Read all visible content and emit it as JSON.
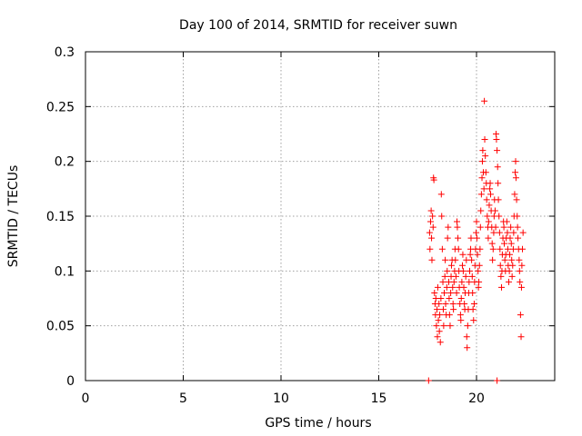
{
  "chart_data": {
    "type": "scatter",
    "title": "Day 100 of 2014, SRMTID for receiver suwn",
    "xlabel": "GPS time / hours",
    "ylabel": "SRMTID / TECUs",
    "xlim": [
      0,
      24
    ],
    "ylim": [
      0,
      0.3
    ],
    "grid": true,
    "marker_color": "#ff0000",
    "marker": "plus",
    "x_ticks": [
      {
        "value": 0,
        "label": "0"
      },
      {
        "value": 5,
        "label": "5"
      },
      {
        "value": 10,
        "label": "10"
      },
      {
        "value": 15,
        "label": "15"
      },
      {
        "value": 20,
        "label": "20"
      }
    ],
    "y_ticks": [
      {
        "value": 0,
        "label": "0"
      },
      {
        "value": 0.05,
        "label": "0.05"
      },
      {
        "value": 0.1,
        "label": "0.1"
      },
      {
        "value": 0.15,
        "label": "0.15"
      },
      {
        "value": 0.2,
        "label": "0.2"
      },
      {
        "value": 0.25,
        "label": "0.25"
      },
      {
        "value": 0.3,
        "label": "0.3"
      }
    ],
    "series": [
      {
        "name": "SRMTID",
        "points": [
          [
            17.55,
            0.0
          ],
          [
            21.05,
            0.0
          ],
          [
            17.6,
            0.135
          ],
          [
            17.62,
            0.12
          ],
          [
            17.65,
            0.145
          ],
          [
            17.68,
            0.155
          ],
          [
            17.7,
            0.13
          ],
          [
            17.72,
            0.11
          ],
          [
            17.75,
            0.15
          ],
          [
            17.78,
            0.14
          ],
          [
            17.8,
            0.185
          ],
          [
            17.82,
            0.183
          ],
          [
            17.85,
            0.08
          ],
          [
            17.88,
            0.07
          ],
          [
            17.9,
            0.06
          ],
          [
            17.92,
            0.075
          ],
          [
            17.95,
            0.05
          ],
          [
            17.98,
            0.065
          ],
          [
            18.0,
            0.04
          ],
          [
            18.02,
            0.085
          ],
          [
            18.05,
            0.055
          ],
          [
            18.08,
            0.07
          ],
          [
            18.1,
            0.045
          ],
          [
            18.12,
            0.06
          ],
          [
            18.15,
            0.035
          ],
          [
            18.18,
            0.075
          ],
          [
            18.2,
            0.17
          ],
          [
            18.22,
            0.15
          ],
          [
            18.25,
            0.12
          ],
          [
            18.28,
            0.09
          ],
          [
            18.3,
            0.065
          ],
          [
            18.32,
            0.05
          ],
          [
            18.35,
            0.08
          ],
          [
            18.38,
            0.095
          ],
          [
            18.4,
            0.11
          ],
          [
            18.42,
            0.07
          ],
          [
            18.45,
            0.06
          ],
          [
            18.48,
            0.085
          ],
          [
            18.5,
            0.1
          ],
          [
            18.52,
            0.13
          ],
          [
            18.55,
            0.14
          ],
          [
            18.58,
            0.09
          ],
          [
            18.6,
            0.075
          ],
          [
            18.62,
            0.06
          ],
          [
            18.65,
            0.05
          ],
          [
            18.68,
            0.08
          ],
          [
            18.7,
            0.095
          ],
          [
            18.72,
            0.105
          ],
          [
            18.75,
            0.11
          ],
          [
            18.78,
            0.085
          ],
          [
            18.8,
            0.07
          ],
          [
            18.82,
            0.065
          ],
          [
            18.85,
            0.09
          ],
          [
            18.88,
            0.1
          ],
          [
            18.9,
            0.12
          ],
          [
            18.92,
            0.11
          ],
          [
            18.95,
            0.095
          ],
          [
            18.98,
            0.08
          ],
          [
            19.0,
            0.145
          ],
          [
            19.02,
            0.14
          ],
          [
            19.05,
            0.13
          ],
          [
            19.08,
            0.12
          ],
          [
            19.1,
            0.1
          ],
          [
            19.12,
            0.085
          ],
          [
            19.15,
            0.07
          ],
          [
            19.18,
            0.06
          ],
          [
            19.2,
            0.055
          ],
          [
            19.22,
            0.075
          ],
          [
            19.25,
            0.09
          ],
          [
            19.28,
            0.105
          ],
          [
            19.3,
            0.115
          ],
          [
            19.32,
            0.1
          ],
          [
            19.35,
            0.085
          ],
          [
            19.38,
            0.07
          ],
          [
            19.4,
            0.065
          ],
          [
            19.42,
            0.08
          ],
          [
            19.45,
            0.095
          ],
          [
            19.48,
            0.11
          ],
          [
            19.5,
            0.04
          ],
          [
            19.52,
            0.03
          ],
          [
            19.55,
            0.05
          ],
          [
            19.58,
            0.065
          ],
          [
            19.6,
            0.08
          ],
          [
            19.62,
            0.09
          ],
          [
            19.65,
            0.1
          ],
          [
            19.68,
            0.115
          ],
          [
            19.7,
            0.12
          ],
          [
            19.72,
            0.13
          ],
          [
            19.75,
            0.11
          ],
          [
            19.78,
            0.095
          ],
          [
            19.8,
            0.08
          ],
          [
            19.82,
            0.065
          ],
          [
            19.85,
            0.055
          ],
          [
            19.88,
            0.07
          ],
          [
            19.9,
            0.09
          ],
          [
            19.92,
            0.105
          ],
          [
            19.95,
            0.12
          ],
          [
            19.98,
            0.135
          ],
          [
            20.0,
            0.145
          ],
          [
            20.02,
            0.13
          ],
          [
            20.05,
            0.115
          ],
          [
            20.08,
            0.1
          ],
          [
            20.1,
            0.085
          ],
          [
            20.12,
            0.09
          ],
          [
            20.15,
            0.105
          ],
          [
            20.18,
            0.12
          ],
          [
            20.2,
            0.14
          ],
          [
            20.22,
            0.155
          ],
          [
            20.25,
            0.17
          ],
          [
            20.28,
            0.185
          ],
          [
            20.3,
            0.2
          ],
          [
            20.32,
            0.21
          ],
          [
            20.35,
            0.19
          ],
          [
            20.38,
            0.175
          ],
          [
            20.4,
            0.255
          ],
          [
            20.42,
            0.22
          ],
          [
            20.45,
            0.205
          ],
          [
            20.48,
            0.19
          ],
          [
            20.5,
            0.18
          ],
          [
            20.52,
            0.165
          ],
          [
            20.55,
            0.15
          ],
          [
            20.58,
            0.14
          ],
          [
            20.6,
            0.13
          ],
          [
            20.62,
            0.145
          ],
          [
            20.65,
            0.16
          ],
          [
            20.68,
            0.175
          ],
          [
            20.7,
            0.18
          ],
          [
            20.72,
            0.17
          ],
          [
            20.75,
            0.155
          ],
          [
            20.78,
            0.14
          ],
          [
            20.8,
            0.125
          ],
          [
            20.82,
            0.11
          ],
          [
            20.85,
            0.12
          ],
          [
            20.88,
            0.135
          ],
          [
            20.9,
            0.15
          ],
          [
            20.92,
            0.165
          ],
          [
            20.95,
            0.155
          ],
          [
            20.98,
            0.14
          ],
          [
            21.0,
            0.225
          ],
          [
            21.02,
            0.22
          ],
          [
            21.05,
            0.21
          ],
          [
            21.08,
            0.195
          ],
          [
            21.1,
            0.18
          ],
          [
            21.12,
            0.165
          ],
          [
            21.15,
            0.15
          ],
          [
            21.18,
            0.135
          ],
          [
            21.2,
            0.12
          ],
          [
            21.22,
            0.105
          ],
          [
            21.25,
            0.095
          ],
          [
            21.28,
            0.085
          ],
          [
            21.3,
            0.1
          ],
          [
            21.32,
            0.115
          ],
          [
            21.35,
            0.13
          ],
          [
            21.38,
            0.145
          ],
          [
            21.4,
            0.14
          ],
          [
            21.42,
            0.125
          ],
          [
            21.45,
            0.11
          ],
          [
            21.48,
            0.1
          ],
          [
            21.5,
            0.115
          ],
          [
            21.52,
            0.13
          ],
          [
            21.55,
            0.145
          ],
          [
            21.58,
            0.135
          ],
          [
            21.6,
            0.12
          ],
          [
            21.62,
            0.105
          ],
          [
            21.65,
            0.09
          ],
          [
            21.68,
            0.1
          ],
          [
            21.7,
            0.115
          ],
          [
            21.72,
            0.13
          ],
          [
            21.75,
            0.14
          ],
          [
            21.78,
            0.125
          ],
          [
            21.8,
            0.11
          ],
          [
            21.82,
            0.095
          ],
          [
            21.85,
            0.105
          ],
          [
            21.88,
            0.12
          ],
          [
            21.9,
            0.135
          ],
          [
            21.92,
            0.15
          ],
          [
            21.95,
            0.17
          ],
          [
            21.98,
            0.19
          ],
          [
            22.0,
            0.2
          ],
          [
            22.02,
            0.185
          ],
          [
            22.05,
            0.165
          ],
          [
            22.08,
            0.15
          ],
          [
            22.1,
            0.14
          ],
          [
            22.12,
            0.13
          ],
          [
            22.15,
            0.12
          ],
          [
            22.18,
            0.11
          ],
          [
            22.2,
            0.1
          ],
          [
            22.22,
            0.09
          ],
          [
            22.25,
            0.06
          ],
          [
            22.28,
            0.04
          ],
          [
            22.3,
            0.085
          ],
          [
            22.32,
            0.105
          ],
          [
            22.35,
            0.12
          ],
          [
            22.38,
            0.135
          ]
        ]
      }
    ]
  }
}
